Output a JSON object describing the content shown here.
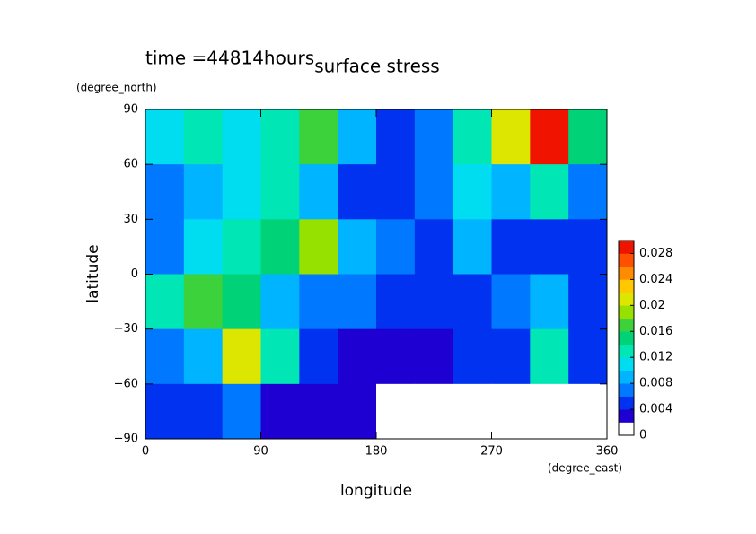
{
  "chart_data": {
    "type": "heatmap",
    "title": "surface stress",
    "subtitle": "time =44814hours",
    "x_label": "longitude",
    "x_unit": "(degree_east)",
    "y_label": "latitude",
    "y_unit": "(degree_north)",
    "xlim": [
      0,
      360
    ],
    "xticks": [
      0,
      90,
      180,
      270,
      360
    ],
    "ylim": [
      -90,
      90
    ],
    "yticks": [
      {
        "value": -90,
        "label": "−90"
      },
      {
        "value": -60,
        "label": "−60"
      },
      {
        "value": -30,
        "label": "−30"
      },
      0,
      30,
      60,
      90
    ],
    "clim": [
      0,
      0.03
    ],
    "cticks": [
      0,
      0.004,
      0.008,
      0.012,
      0.016,
      0.02,
      0.024,
      0.028
    ],
    "colors": [
      "#ffffff",
      "#1e00d2",
      "#0032f0",
      "#0078ff",
      "#00b4ff",
      "#00dcf0",
      "#00e6b4",
      "#00d278",
      "#3cd23c",
      "#96e100",
      "#dce600",
      "#ffc800",
      "#ff8c00",
      "#ff5000",
      "#f01400"
    ],
    "values": [
      [
        0.01,
        0.012,
        0.01,
        0.012,
        0.016,
        0.008,
        0.004,
        0.006,
        0.012,
        0.02,
        0.028,
        0.014
      ],
      [
        0.006,
        0.008,
        0.01,
        0.012,
        0.008,
        0.004,
        0.004,
        0.006,
        0.01,
        0.008,
        0.012,
        0.006
      ],
      [
        0.006,
        0.01,
        0.012,
        0.014,
        0.018,
        0.008,
        0.006,
        0.004,
        0.008,
        0.004,
        0.004,
        0.004
      ],
      [
        0.012,
        0.016,
        0.014,
        0.008,
        0.006,
        0.006,
        0.004,
        0.004,
        0.004,
        0.006,
        0.008,
        0.004
      ],
      [
        0.006,
        0.008,
        0.02,
        0.012,
        0.004,
        0.002,
        0.002,
        0.002,
        0.004,
        0.004,
        0.012,
        0.004
      ],
      [
        0.004,
        0.004,
        0.006,
        0.002,
        0.002,
        0.002,
        0.001,
        0.001,
        0.001,
        0.001,
        0.001,
        0.001
      ]
    ]
  }
}
